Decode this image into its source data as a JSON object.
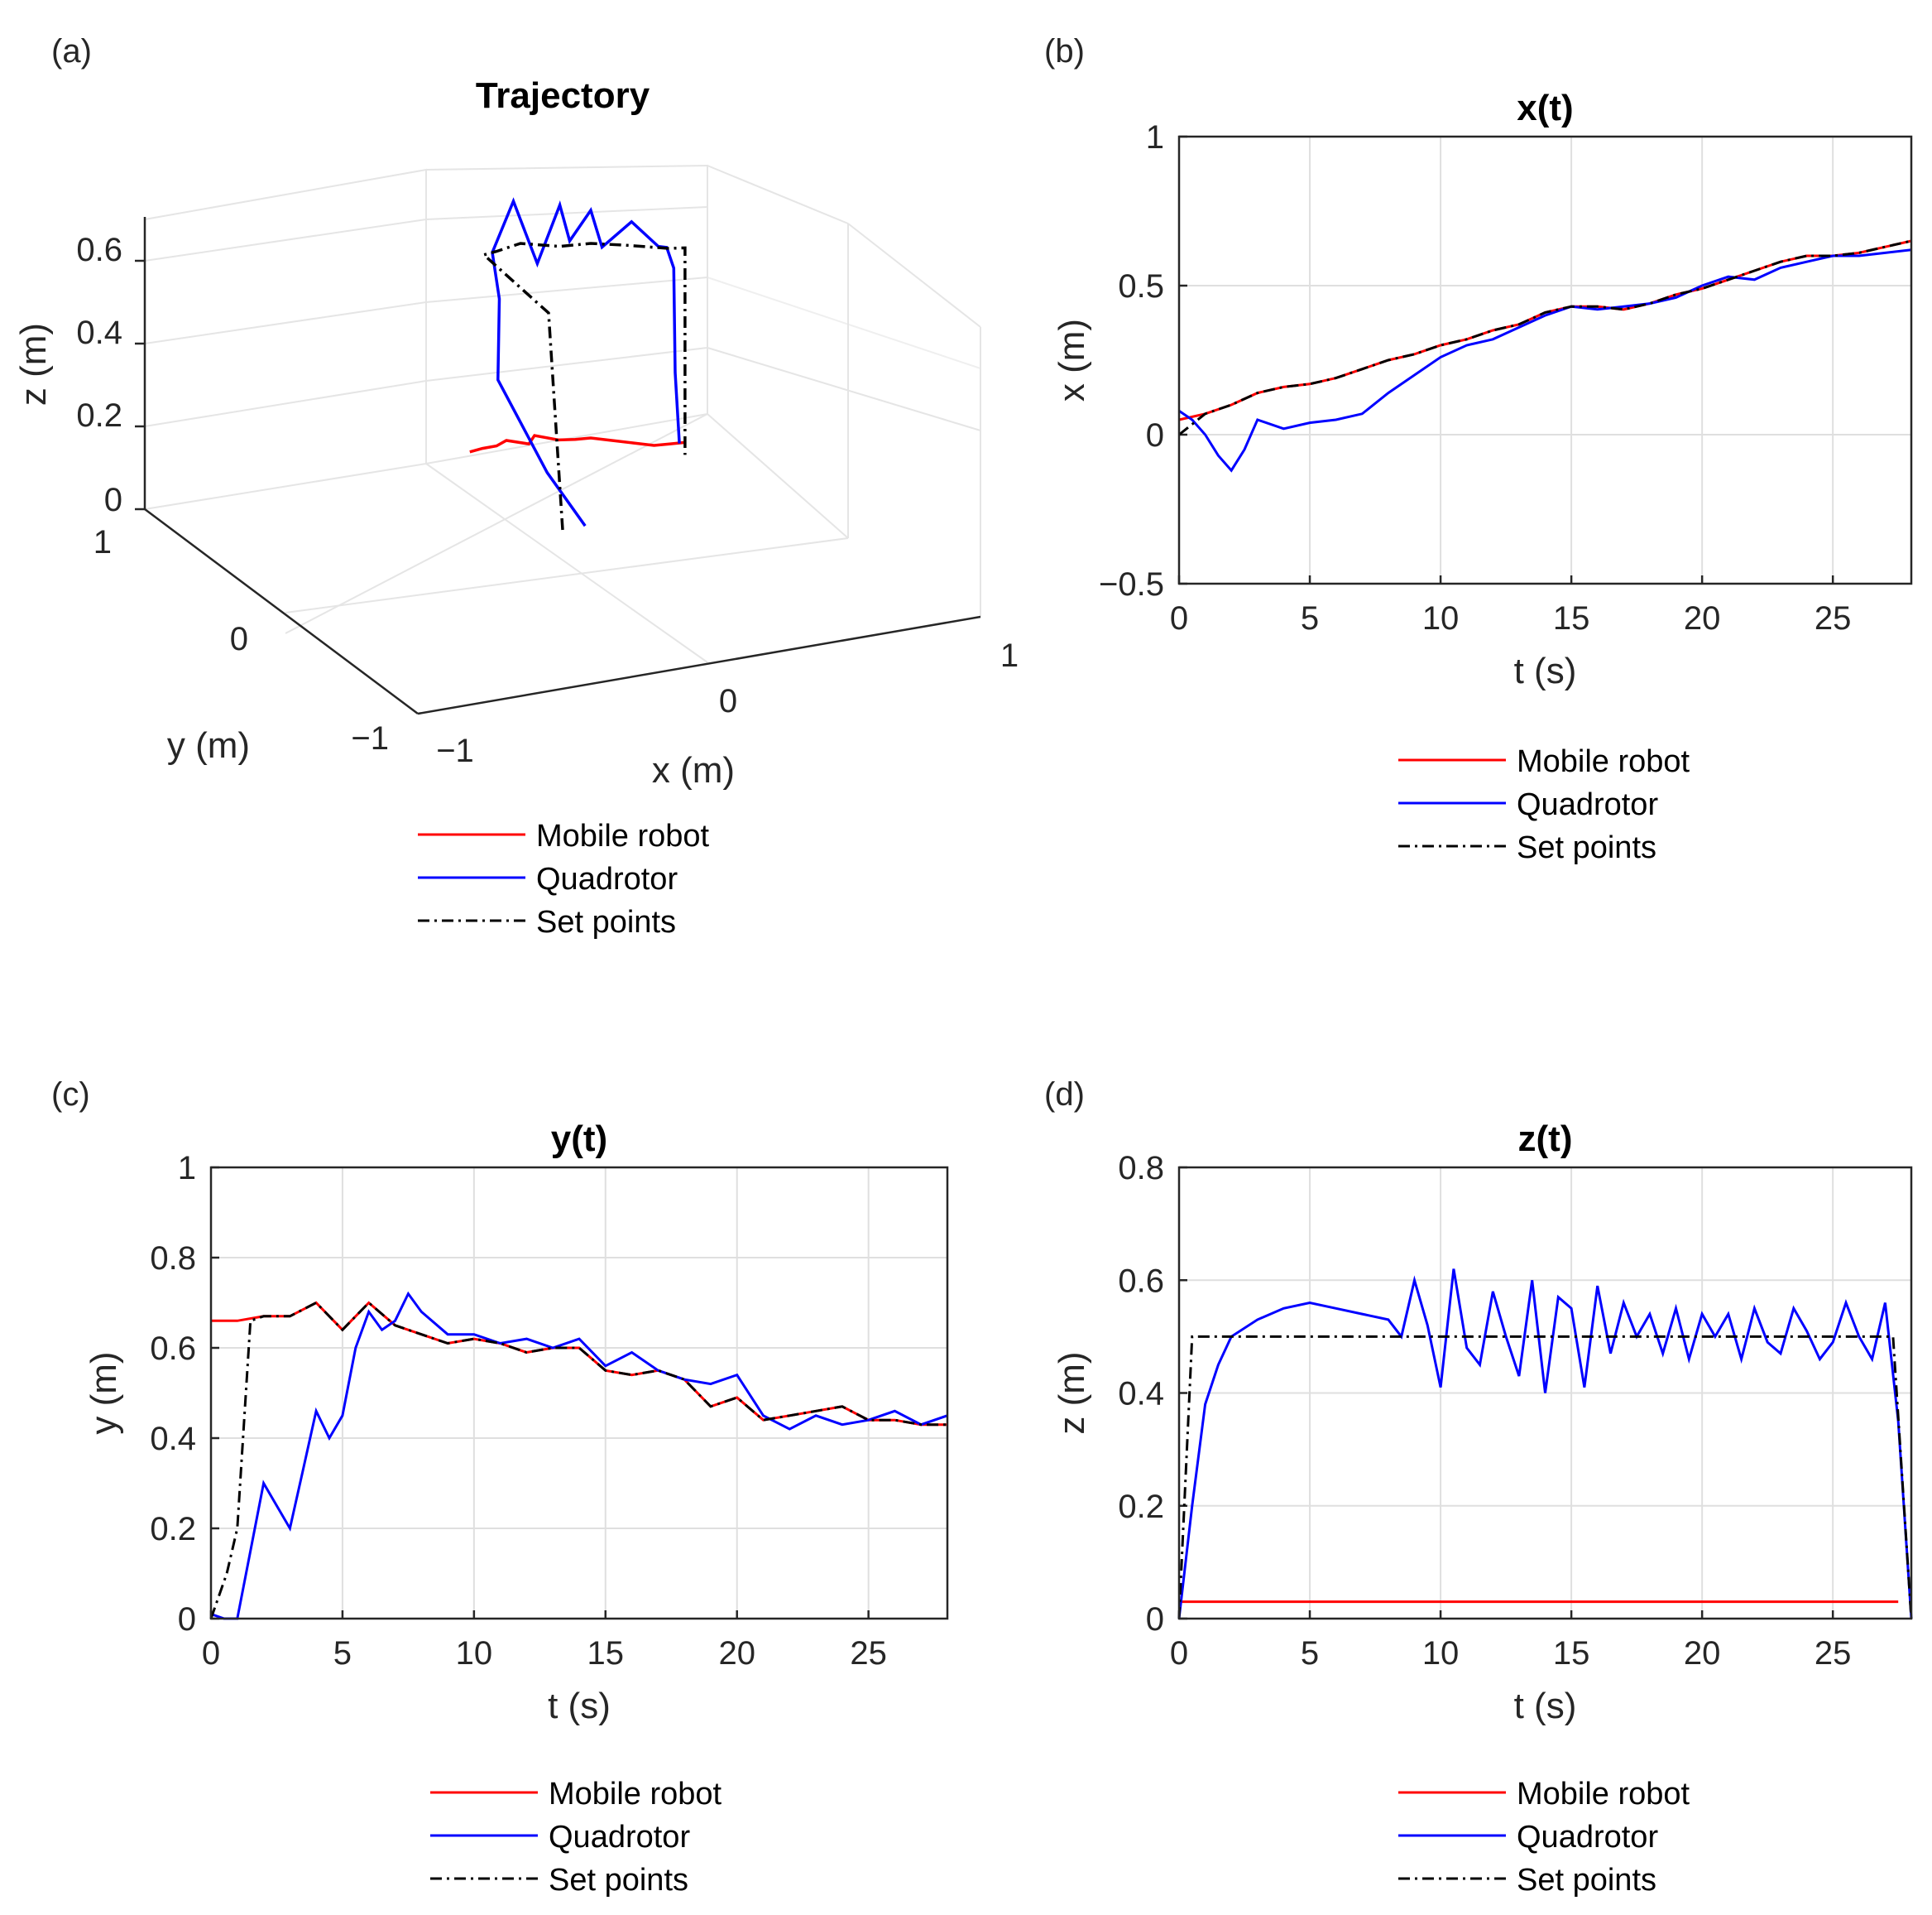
{
  "colors": {
    "mobile": "#ff0000",
    "quad": "#0000ff",
    "setp": "#000000"
  },
  "chart_data": [
    {
      "panel": "(a)",
      "type": "line",
      "title": "Trajectory",
      "xlabel": "x (m)",
      "ylabel": "y (m)",
      "zlabel": "z (m)",
      "xlim": [
        -1,
        1
      ],
      "ylim": [
        -1,
        1
      ],
      "zlim": [
        0,
        0.7
      ],
      "x_ticks": [
        "−1",
        "0",
        "1"
      ],
      "y_ticks": [
        "−1",
        "0",
        "1"
      ],
      "z_ticks": [
        "0",
        "0.2",
        "0.4",
        "0.6"
      ],
      "legend": [
        "Mobile robot",
        "Quadrotor",
        "Set points"
      ],
      "series": [
        {
          "name": "Mobile robot",
          "x": [
            0.0,
            0.05,
            0.1,
            0.15,
            0.2,
            0.25,
            0.3,
            0.35,
            0.4,
            0.45,
            0.5,
            0.55,
            0.6,
            0.65
          ],
          "y": [
            0.66,
            0.67,
            0.67,
            0.7,
            0.64,
            0.7,
            0.63,
            0.61,
            0.6,
            0.55,
            0.5,
            0.45,
            0.44,
            0.43
          ],
          "z": [
            0.03,
            0.03,
            0.03,
            0.03,
            0.03,
            0.03,
            0.03,
            0.03,
            0.03,
            0.03,
            0.03,
            0.03,
            0.03,
            0.03
          ]
        },
        {
          "name": "Quadrotor",
          "x": [
            0.08,
            0.02,
            -0.08,
            0.0,
            0.05,
            0.15,
            0.25,
            0.3,
            0.35,
            0.4,
            0.45,
            0.52,
            0.58,
            0.6,
            0.62,
            0.62,
            0.63
          ],
          "y": [
            0.0,
            0.15,
            0.3,
            0.45,
            0.6,
            0.65,
            0.68,
            0.62,
            0.65,
            0.6,
            0.62,
            0.55,
            0.48,
            0.46,
            0.45,
            0.44,
            0.43
          ],
          "z": [
            0.0,
            0.1,
            0.3,
            0.45,
            0.52,
            0.62,
            0.45,
            0.6,
            0.5,
            0.58,
            0.48,
            0.55,
            0.5,
            0.5,
            0.45,
            0.2,
            0.03
          ]
        },
        {
          "name": "Set points",
          "x": [
            0.0,
            0.0,
            0.05,
            0.1,
            0.2,
            0.3,
            0.4,
            0.5,
            0.6,
            0.65,
            0.65
          ],
          "y": [
            0.0,
            0.1,
            0.66,
            0.67,
            0.7,
            0.62,
            0.6,
            0.53,
            0.45,
            0.43,
            0.43
          ],
          "z": [
            0.0,
            0.5,
            0.5,
            0.5,
            0.5,
            0.5,
            0.5,
            0.5,
            0.5,
            0.5,
            0.0
          ]
        }
      ]
    },
    {
      "panel": "(b)",
      "type": "line",
      "title": "x(t)",
      "xlabel": "t (s)",
      "ylabel": "x (m)",
      "xlim": [
        0,
        28
      ],
      "ylim": [
        -0.5,
        1
      ],
      "x_ticks": [
        0,
        5,
        10,
        15,
        20,
        25
      ],
      "y_ticks": [
        -0.5,
        0,
        0.5,
        1
      ],
      "y_tick_labels": [
        "−0.5",
        "0",
        "0.5",
        "1"
      ],
      "legend": [
        "Mobile robot",
        "Quadrotor",
        "Set points"
      ],
      "series": [
        {
          "name": "Mobile robot",
          "x": [
            0,
            1,
            2,
            3,
            4,
            5,
            6,
            7,
            8,
            9,
            10,
            11,
            12,
            13,
            14,
            15,
            16,
            17,
            18,
            19,
            20,
            21,
            22,
            23,
            24,
            25,
            26,
            27,
            28
          ],
          "y": [
            0.05,
            0.07,
            0.1,
            0.14,
            0.16,
            0.17,
            0.19,
            0.22,
            0.25,
            0.27,
            0.3,
            0.32,
            0.35,
            0.37,
            0.41,
            0.43,
            0.43,
            0.42,
            0.44,
            0.47,
            0.49,
            0.52,
            0.55,
            0.58,
            0.6,
            0.6,
            0.61,
            0.63,
            0.65
          ]
        },
        {
          "name": "Quadrotor",
          "x": [
            0,
            0.5,
            1,
            1.5,
            2,
            2.5,
            3,
            4,
            5,
            6,
            7,
            8,
            9,
            10,
            11,
            12,
            13,
            14,
            15,
            16,
            17,
            18,
            19,
            20,
            21,
            22,
            23,
            24,
            25,
            26,
            27,
            28
          ],
          "y": [
            0.08,
            0.05,
            0.0,
            -0.07,
            -0.12,
            -0.05,
            0.05,
            0.02,
            0.04,
            0.05,
            0.07,
            0.14,
            0.2,
            0.26,
            0.3,
            0.32,
            0.36,
            0.4,
            0.43,
            0.42,
            0.43,
            0.44,
            0.46,
            0.5,
            0.53,
            0.52,
            0.56,
            0.58,
            0.6,
            0.6,
            0.61,
            0.62
          ]
        },
        {
          "name": "Set points",
          "x": [
            0,
            1,
            2,
            3,
            4,
            5,
            6,
            7,
            8,
            9,
            10,
            11,
            12,
            13,
            14,
            15,
            16,
            17,
            18,
            19,
            20,
            21,
            22,
            23,
            24,
            25,
            26,
            27,
            28
          ],
          "y": [
            0.0,
            0.07,
            0.1,
            0.14,
            0.16,
            0.17,
            0.19,
            0.22,
            0.25,
            0.27,
            0.3,
            0.32,
            0.35,
            0.37,
            0.41,
            0.43,
            0.43,
            0.42,
            0.44,
            0.47,
            0.49,
            0.52,
            0.55,
            0.58,
            0.6,
            0.6,
            0.61,
            0.63,
            0.65
          ]
        }
      ]
    },
    {
      "panel": "(c)",
      "type": "line",
      "title": "y(t)",
      "xlabel": "t (s)",
      "ylabel": "y (m)",
      "xlim": [
        0,
        28
      ],
      "ylim": [
        0,
        1
      ],
      "x_ticks": [
        0,
        5,
        10,
        15,
        20,
        25
      ],
      "y_ticks": [
        0,
        0.2,
        0.4,
        0.6,
        0.8,
        1
      ],
      "y_tick_labels": [
        "0",
        "0.2",
        "0.4",
        "0.6",
        "0.8",
        "1"
      ],
      "legend": [
        "Mobile robot",
        "Quadrotor",
        "Set points"
      ],
      "series": [
        {
          "name": "Mobile robot",
          "x": [
            0,
            1,
            2,
            3,
            4,
            5,
            6,
            7,
            8,
            9,
            10,
            11,
            12,
            13,
            14,
            15,
            16,
            17,
            18,
            19,
            20,
            21,
            22,
            23,
            24,
            25,
            26,
            27,
            28
          ],
          "y": [
            0.66,
            0.66,
            0.67,
            0.67,
            0.7,
            0.64,
            0.7,
            0.65,
            0.63,
            0.61,
            0.62,
            0.61,
            0.59,
            0.6,
            0.6,
            0.55,
            0.54,
            0.55,
            0.53,
            0.47,
            0.49,
            0.44,
            0.45,
            0.46,
            0.47,
            0.44,
            0.44,
            0.43,
            0.43
          ]
        },
        {
          "name": "Quadrotor",
          "x": [
            0,
            0.5,
            1,
            1.5,
            2,
            2.5,
            3,
            3.5,
            4,
            4.5,
            5,
            5.5,
            6,
            6.5,
            7,
            7.5,
            8,
            9,
            10,
            11,
            12,
            13,
            14,
            15,
            16,
            17,
            18,
            19,
            20,
            21,
            22,
            23,
            24,
            25,
            26,
            27,
            28
          ],
          "y": [
            0.01,
            0.0,
            0.0,
            0.15,
            0.3,
            0.25,
            0.2,
            0.33,
            0.46,
            0.4,
            0.45,
            0.6,
            0.68,
            0.64,
            0.66,
            0.72,
            0.68,
            0.63,
            0.63,
            0.61,
            0.62,
            0.6,
            0.62,
            0.56,
            0.59,
            0.55,
            0.53,
            0.52,
            0.54,
            0.45,
            0.42,
            0.45,
            0.43,
            0.44,
            0.46,
            0.43,
            0.45
          ]
        },
        {
          "name": "Set points",
          "x": [
            0,
            0.6,
            1,
            1.5,
            2,
            3,
            4,
            5,
            6,
            7,
            8,
            9,
            10,
            11,
            12,
            13,
            14,
            15,
            16,
            17,
            18,
            19,
            20,
            21,
            22,
            23,
            24,
            25,
            26,
            27,
            28
          ],
          "y": [
            0.0,
            0.1,
            0.2,
            0.66,
            0.67,
            0.67,
            0.7,
            0.64,
            0.7,
            0.65,
            0.63,
            0.61,
            0.62,
            0.61,
            0.59,
            0.6,
            0.6,
            0.55,
            0.54,
            0.55,
            0.53,
            0.47,
            0.49,
            0.44,
            0.45,
            0.46,
            0.47,
            0.44,
            0.44,
            0.43,
            0.43
          ]
        }
      ]
    },
    {
      "panel": "(d)",
      "type": "line",
      "title": "z(t)",
      "xlabel": "t (s)",
      "ylabel": "z (m)",
      "xlim": [
        0,
        28
      ],
      "ylim": [
        0,
        0.8
      ],
      "x_ticks": [
        0,
        5,
        10,
        15,
        20,
        25
      ],
      "y_ticks": [
        0,
        0.2,
        0.4,
        0.6,
        0.8
      ],
      "y_tick_labels": [
        "0",
        "0.2",
        "0.4",
        "0.6",
        "0.8"
      ],
      "legend": [
        "Mobile robot",
        "Quadrotor",
        "Set points"
      ],
      "series": [
        {
          "name": "Mobile robot",
          "x": [
            0,
            2,
            5,
            10,
            15,
            20,
            25,
            27.5
          ],
          "y": [
            0.03,
            0.03,
            0.03,
            0.03,
            0.03,
            0.03,
            0.03,
            0.03
          ]
        },
        {
          "name": "Quadrotor",
          "x": [
            0,
            0.5,
            1,
            1.5,
            2,
            3,
            4,
            5,
            6,
            7,
            8,
            8.5,
            9,
            9.5,
            10,
            10.5,
            11,
            11.5,
            12,
            12.5,
            13,
            13.5,
            14,
            14.5,
            15,
            15.5,
            16,
            16.5,
            17,
            17.5,
            18,
            18.5,
            19,
            19.5,
            20,
            20.5,
            21,
            21.5,
            22,
            22.5,
            23,
            23.5,
            24,
            24.5,
            25,
            25.5,
            26,
            26.5,
            27,
            27.5,
            28
          ],
          "y": [
            0.0,
            0.2,
            0.38,
            0.45,
            0.5,
            0.53,
            0.55,
            0.56,
            0.55,
            0.54,
            0.53,
            0.5,
            0.6,
            0.52,
            0.41,
            0.62,
            0.48,
            0.45,
            0.58,
            0.5,
            0.43,
            0.6,
            0.4,
            0.57,
            0.55,
            0.41,
            0.59,
            0.47,
            0.56,
            0.5,
            0.54,
            0.47,
            0.55,
            0.46,
            0.54,
            0.5,
            0.54,
            0.46,
            0.55,
            0.49,
            0.47,
            0.55,
            0.51,
            0.46,
            0.49,
            0.56,
            0.5,
            0.46,
            0.56,
            0.35,
            0.0
          ]
        },
        {
          "name": "Set points",
          "x": [
            0,
            0.5,
            27.3,
            28
          ],
          "y": [
            0.0,
            0.5,
            0.5,
            0.0
          ]
        }
      ]
    }
  ]
}
